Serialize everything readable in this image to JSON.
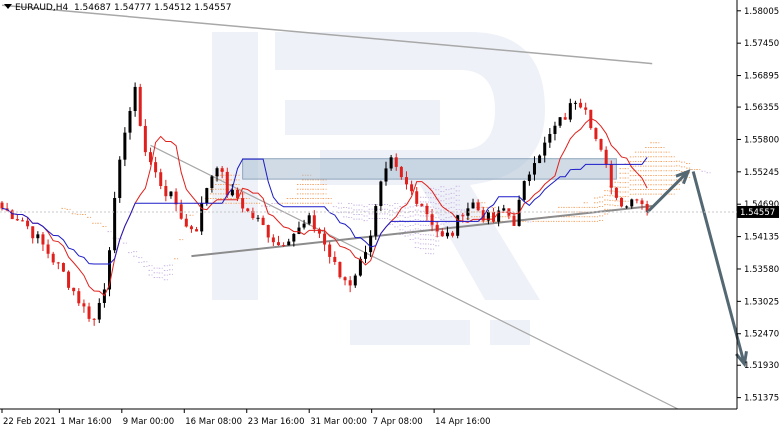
{
  "header": {
    "symbol": "EURAUD,H4",
    "open": "1.54687",
    "high": "1.54777",
    "low": "1.54512",
    "close": "1.54557"
  },
  "current_price_label": "1.54557",
  "colors": {
    "bull": "#000000",
    "bear": "#e0201c",
    "tenkan": "#e0201c",
    "kijun": "#1b1bc8",
    "cloud_a": "#f5a262",
    "cloud_b": "#c9b4e3",
    "channel": "#a8a8a8",
    "arrow": "#546873",
    "zone": "#a9bed2"
  },
  "chart_data": {
    "type": "candlestick",
    "instrument": "EURAUD",
    "timeframe": "H4",
    "y_ticks": [
      "1.58005",
      "1.57450",
      "1.56895",
      "1.56355",
      "1.55800",
      "1.55245",
      "1.54690",
      "1.54135",
      "1.53580",
      "1.53025",
      "1.52470",
      "1.51930",
      "1.51375"
    ],
    "x_ticks": [
      "22 Feb 2021",
      "1 Mar 16:00",
      "9 Mar 00:00",
      "16 Mar 08:00",
      "23 Mar 16:00",
      "31 Mar 00:00",
      "7 Apr 08:00",
      "14 Apr 16:00"
    ],
    "ylim": [
      1.5118,
      1.5819
    ],
    "last_price": 1.54557,
    "price_path": [
      [
        0,
        1.5462
      ],
      [
        4,
        1.5442
      ],
      [
        8,
        1.5398
      ],
      [
        12,
        1.535
      ],
      [
        16,
        1.529
      ],
      [
        18,
        1.527
      ],
      [
        20,
        1.533
      ],
      [
        22,
        1.547
      ],
      [
        24,
        1.56
      ],
      [
        26,
        1.566
      ],
      [
        28,
        1.556
      ],
      [
        30,
        1.552
      ],
      [
        32,
        1.549
      ],
      [
        34,
        1.547
      ],
      [
        36,
        1.543
      ],
      [
        38,
        1.543
      ],
      [
        40,
        1.55
      ],
      [
        42,
        1.554
      ],
      [
        44,
        1.549
      ],
      [
        46,
        1.548
      ],
      [
        48,
        1.5455
      ],
      [
        50,
        1.544
      ],
      [
        52,
        1.542
      ],
      [
        54,
        1.54
      ],
      [
        56,
        1.5415
      ],
      [
        58,
        1.5425
      ],
      [
        60,
        1.544
      ],
      [
        62,
        1.542
      ],
      [
        64,
        1.538
      ],
      [
        66,
        1.5345
      ],
      [
        68,
        1.5335
      ],
      [
        70,
        1.537
      ],
      [
        72,
        1.542
      ],
      [
        74,
        1.55
      ],
      [
        76,
        1.554
      ],
      [
        78,
        1.551
      ],
      [
        80,
        1.549
      ],
      [
        82,
        1.547
      ],
      [
        84,
        1.544
      ],
      [
        86,
        1.541
      ],
      [
        88,
        1.542
      ],
      [
        90,
        1.546
      ],
      [
        92,
        1.547
      ],
      [
        94,
        1.545
      ],
      [
        96,
        1.544
      ],
      [
        98,
        1.546
      ],
      [
        100,
        1.544
      ],
      [
        102,
        1.55
      ],
      [
        104,
        1.555
      ],
      [
        106,
        1.557
      ],
      [
        108,
        1.56
      ],
      [
        110,
        1.562
      ],
      [
        112,
        1.565
      ],
      [
        114,
        1.564
      ],
      [
        116,
        1.558
      ],
      [
        118,
        1.553
      ],
      [
        120,
        1.548
      ],
      [
        122,
        1.547
      ],
      [
        124,
        1.5485
      ],
      [
        126,
        1.546
      ]
    ],
    "overlays": {
      "resistance_zone": [
        1.5512,
        1.5547
      ],
      "channel_upper": [
        [
          0,
          1.581
        ],
        [
          127,
          1.571
        ]
      ],
      "channel_lower": [
        [
          37,
          1.538
        ],
        [
          127,
          1.5466
        ]
      ],
      "descending_line": [
        [
          29,
          1.557
        ],
        [
          132,
          1.5118
        ]
      ],
      "forecast_arrow_up": [
        [
          126,
          1.5455
        ],
        [
          134,
          1.5525
        ]
      ],
      "forecast_arrow_down": [
        [
          135,
          1.5525
        ],
        [
          145,
          1.5195
        ]
      ]
    }
  }
}
